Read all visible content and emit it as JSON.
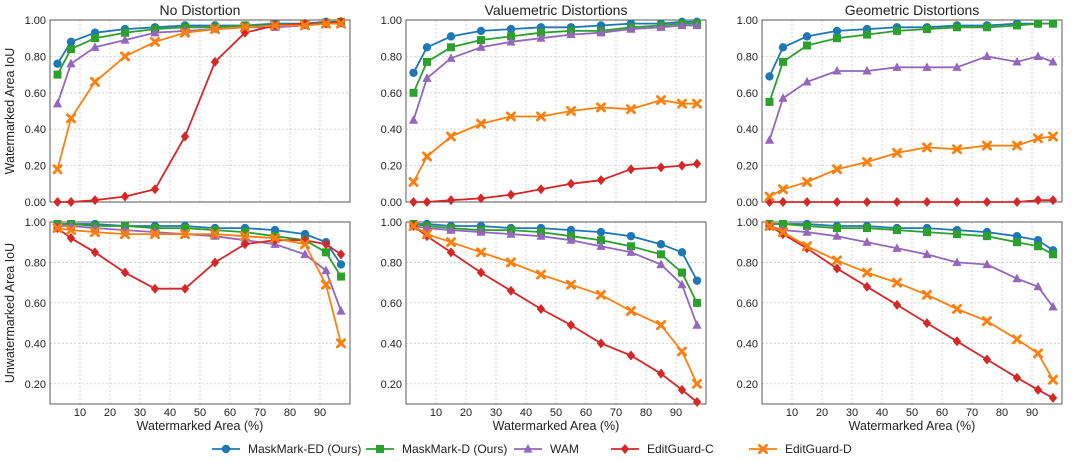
{
  "chart_data": {
    "type": "line",
    "grid": true,
    "legend_placement": "bottom-center",
    "x_label": "Watermarked Area (%)",
    "x_ticks": [
      10,
      20,
      30,
      40,
      50,
      60,
      70,
      80,
      90
    ],
    "x": [
      2.5,
      7,
      15,
      25,
      35,
      45,
      55,
      65,
      75,
      85,
      92,
      97
    ],
    "series_meta": [
      {
        "name": "MaskMark-ED (Ours)",
        "color": "#1f77b4",
        "marker": "circle"
      },
      {
        "name": "MaskMark-D (Ours)",
        "color": "#2ca02c",
        "marker": "square"
      },
      {
        "name": "WAM",
        "color": "#9467bd",
        "marker": "triangle"
      },
      {
        "name": "EditGuard-C",
        "color": "#d62728",
        "marker": "diamond"
      },
      {
        "name": "EditGuard-D",
        "color": "#ff7f0e",
        "marker": "x"
      }
    ],
    "rows": [
      {
        "ylabel": "Watermarked Area IoU",
        "ylim": [
          0,
          1
        ],
        "yticks": [
          "0.00",
          "0.20",
          "0.40",
          "0.60",
          "0.80",
          "1.00"
        ]
      },
      {
        "ylabel": "Unwatermarked Area IoU",
        "ylim": [
          0.1,
          1
        ],
        "yticks": [
          "0.20",
          "0.40",
          "0.60",
          "0.80",
          "1.00"
        ]
      }
    ],
    "columns": [
      "No Distortion",
      "Valuemetric Distortions",
      "Geometric Distortions"
    ],
    "panels": [
      {
        "row": 0,
        "col": 0,
        "series": [
          {
            "name": "MaskMark-ED (Ours)",
            "values": [
              0.76,
              0.88,
              0.93,
              0.95,
              0.96,
              0.97,
              0.97,
              0.97,
              0.98,
              0.98,
              0.99,
              0.99
            ]
          },
          {
            "name": "MaskMark-D (Ours)",
            "values": [
              0.7,
              0.84,
              0.9,
              0.93,
              0.95,
              0.96,
              0.96,
              0.97,
              0.97,
              0.98,
              0.98,
              0.99
            ]
          },
          {
            "name": "WAM",
            "values": [
              0.54,
              0.76,
              0.85,
              0.89,
              0.93,
              0.94,
              0.95,
              0.96,
              0.96,
              0.97,
              0.98,
              0.98
            ]
          },
          {
            "name": "EditGuard-C",
            "values": [
              0.0,
              0.0,
              0.01,
              0.03,
              0.07,
              0.36,
              0.77,
              0.93,
              0.97,
              0.98,
              0.98,
              0.99
            ]
          },
          {
            "name": "EditGuard-D",
            "values": [
              0.18,
              0.46,
              0.66,
              0.8,
              0.88,
              0.93,
              0.95,
              0.96,
              0.97,
              0.97,
              0.98,
              0.98
            ]
          }
        ]
      },
      {
        "row": 0,
        "col": 1,
        "series": [
          {
            "name": "MaskMark-ED (Ours)",
            "values": [
              0.71,
              0.85,
              0.91,
              0.94,
              0.95,
              0.96,
              0.96,
              0.97,
              0.98,
              0.98,
              0.99,
              0.99
            ]
          },
          {
            "name": "MaskMark-D (Ours)",
            "values": [
              0.6,
              0.77,
              0.85,
              0.89,
              0.91,
              0.93,
              0.94,
              0.94,
              0.96,
              0.97,
              0.98,
              0.98
            ]
          },
          {
            "name": "WAM",
            "values": [
              0.45,
              0.68,
              0.79,
              0.85,
              0.88,
              0.9,
              0.92,
              0.93,
              0.95,
              0.96,
              0.97,
              0.97
            ]
          },
          {
            "name": "EditGuard-C",
            "values": [
              0.0,
              0.0,
              0.01,
              0.02,
              0.04,
              0.07,
              0.1,
              0.12,
              0.18,
              0.19,
              0.2,
              0.21
            ]
          },
          {
            "name": "EditGuard-D",
            "values": [
              0.11,
              0.25,
              0.36,
              0.43,
              0.47,
              0.47,
              0.5,
              0.52,
              0.51,
              0.56,
              0.54,
              0.54
            ]
          }
        ]
      },
      {
        "row": 0,
        "col": 2,
        "series": [
          {
            "name": "MaskMark-ED (Ours)",
            "values": [
              0.69,
              0.85,
              0.91,
              0.94,
              0.95,
              0.96,
              0.96,
              0.97,
              0.97,
              0.98,
              0.98,
              0.98
            ]
          },
          {
            "name": "MaskMark-D (Ours)",
            "values": [
              0.55,
              0.77,
              0.86,
              0.9,
              0.92,
              0.94,
              0.95,
              0.96,
              0.96,
              0.97,
              0.98,
              0.98
            ]
          },
          {
            "name": "WAM",
            "values": [
              0.34,
              0.57,
              0.66,
              0.72,
              0.72,
              0.74,
              0.74,
              0.74,
              0.8,
              0.77,
              0.8,
              0.77
            ]
          },
          {
            "name": "EditGuard-C",
            "values": [
              0.0,
              0.0,
              0.0,
              0.0,
              0.0,
              0.0,
              0.0,
              0.0,
              0.0,
              0.0,
              0.01,
              0.01
            ]
          },
          {
            "name": "EditGuard-D",
            "values": [
              0.03,
              0.07,
              0.11,
              0.18,
              0.22,
              0.27,
              0.3,
              0.29,
              0.31,
              0.31,
              0.35,
              0.36
            ]
          }
        ]
      },
      {
        "row": 1,
        "col": 0,
        "series": [
          {
            "name": "MaskMark-ED (Ours)",
            "values": [
              0.99,
              0.99,
              0.99,
              0.98,
              0.98,
              0.98,
              0.97,
              0.97,
              0.96,
              0.94,
              0.9,
              0.79
            ]
          },
          {
            "name": "MaskMark-D (Ours)",
            "values": [
              0.99,
              0.99,
              0.98,
              0.98,
              0.97,
              0.97,
              0.96,
              0.95,
              0.93,
              0.91,
              0.85,
              0.73
            ]
          },
          {
            "name": "WAM",
            "values": [
              0.98,
              0.98,
              0.97,
              0.96,
              0.95,
              0.94,
              0.93,
              0.91,
              0.89,
              0.84,
              0.76,
              0.56
            ]
          },
          {
            "name": "EditGuard-C",
            "values": [
              0.97,
              0.92,
              0.85,
              0.75,
              0.67,
              0.67,
              0.8,
              0.89,
              0.91,
              0.91,
              0.89,
              0.84
            ]
          },
          {
            "name": "EditGuard-D",
            "values": [
              0.97,
              0.96,
              0.95,
              0.94,
              0.94,
              0.94,
              0.94,
              0.93,
              0.92,
              0.89,
              0.69,
              0.4
            ]
          }
        ]
      },
      {
        "row": 1,
        "col": 1,
        "series": [
          {
            "name": "MaskMark-ED (Ours)",
            "values": [
              0.99,
              0.99,
              0.98,
              0.98,
              0.97,
              0.97,
              0.96,
              0.95,
              0.93,
              0.89,
              0.85,
              0.71
            ]
          },
          {
            "name": "MaskMark-D (Ours)",
            "values": [
              0.99,
              0.98,
              0.97,
              0.96,
              0.96,
              0.95,
              0.93,
              0.91,
              0.88,
              0.84,
              0.75,
              0.6
            ]
          },
          {
            "name": "WAM",
            "values": [
              0.98,
              0.97,
              0.96,
              0.95,
              0.94,
              0.93,
              0.91,
              0.88,
              0.85,
              0.79,
              0.69,
              0.49
            ]
          },
          {
            "name": "EditGuard-C",
            "values": [
              0.98,
              0.93,
              0.85,
              0.75,
              0.66,
              0.57,
              0.49,
              0.4,
              0.34,
              0.25,
              0.17,
              0.11
            ]
          },
          {
            "name": "EditGuard-D",
            "values": [
              0.98,
              0.94,
              0.9,
              0.85,
              0.8,
              0.74,
              0.69,
              0.64,
              0.56,
              0.49,
              0.36,
              0.2
            ]
          }
        ]
      },
      {
        "row": 1,
        "col": 2,
        "series": [
          {
            "name": "MaskMark-ED (Ours)",
            "values": [
              0.99,
              0.99,
              0.99,
              0.98,
              0.98,
              0.97,
              0.97,
              0.96,
              0.95,
              0.93,
              0.91,
              0.86
            ]
          },
          {
            "name": "MaskMark-D (Ours)",
            "values": [
              0.99,
              0.99,
              0.98,
              0.97,
              0.97,
              0.96,
              0.95,
              0.94,
              0.93,
              0.9,
              0.88,
              0.84
            ]
          },
          {
            "name": "WAM",
            "values": [
              0.98,
              0.96,
              0.95,
              0.93,
              0.9,
              0.87,
              0.84,
              0.8,
              0.79,
              0.72,
              0.68,
              0.58
            ]
          },
          {
            "name": "EditGuard-C",
            "values": [
              0.98,
              0.94,
              0.87,
              0.77,
              0.68,
              0.59,
              0.5,
              0.41,
              0.32,
              0.23,
              0.17,
              0.13
            ]
          },
          {
            "name": "EditGuard-D",
            "values": [
              0.98,
              0.95,
              0.88,
              0.81,
              0.75,
              0.7,
              0.64,
              0.57,
              0.51,
              0.42,
              0.35,
              0.22
            ]
          }
        ]
      }
    ]
  }
}
